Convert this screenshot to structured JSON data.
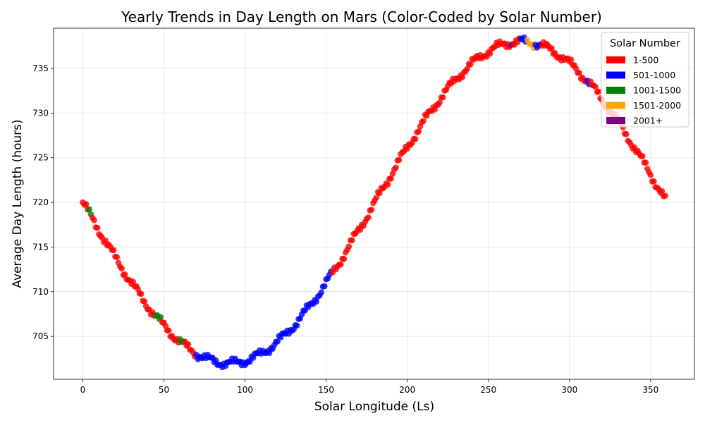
{
  "chart_data": {
    "type": "scatter",
    "title": "Yearly Trends in Day Length on Mars (Color-Coded by Solar Number)",
    "xlabel": "Solar Longitude (Ls)",
    "ylabel": "Average Day Length (hours)",
    "xlim": [
      -18,
      377
    ],
    "ylim": [
      700.2,
      739.5
    ],
    "xticks": [
      0,
      50,
      100,
      150,
      200,
      250,
      300,
      350
    ],
    "yticks": [
      705,
      710,
      715,
      720,
      725,
      730,
      735
    ],
    "grid": true,
    "legend": {
      "title": "Solar Number",
      "placement": "top-right",
      "entries": [
        {
          "label": "1-500",
          "color": "#ff0000"
        },
        {
          "label": "501-1000",
          "color": "#0000ff"
        },
        {
          "label": "1001-1500",
          "color": "#008000"
        },
        {
          "label": "1501-2000",
          "color": "#ffa500"
        },
        {
          "label": "2001+",
          "color": "#800080"
        }
      ]
    },
    "trend": {
      "mean": 720,
      "amplitude": 18,
      "peak_ls": 270,
      "period": 360
    },
    "segments": [
      {
        "from": 0,
        "to": 4,
        "group": 0
      },
      {
        "from": 4,
        "to": 6,
        "group": 2
      },
      {
        "from": 6,
        "to": 45,
        "group": 0
      },
      {
        "from": 45,
        "to": 49,
        "group": 2
      },
      {
        "from": 49,
        "to": 60,
        "group": 0
      },
      {
        "from": 60,
        "to": 63,
        "group": 2
      },
      {
        "from": 63,
        "to": 70,
        "group": 0
      },
      {
        "from": 70,
        "to": 154,
        "group": 1
      },
      {
        "from": 154,
        "to": 264,
        "group": 0
      },
      {
        "from": 264,
        "to": 266,
        "group": 4
      },
      {
        "from": 266,
        "to": 270,
        "group": 0
      },
      {
        "from": 270,
        "to": 274,
        "group": 1
      },
      {
        "from": 274,
        "to": 279,
        "group": 3
      },
      {
        "from": 279,
        "to": 283,
        "group": 1
      },
      {
        "from": 283,
        "to": 311,
        "group": 0
      },
      {
        "from": 311,
        "to": 313,
        "group": 1
      },
      {
        "from": 313,
        "to": 360,
        "group": 0
      }
    ]
  }
}
